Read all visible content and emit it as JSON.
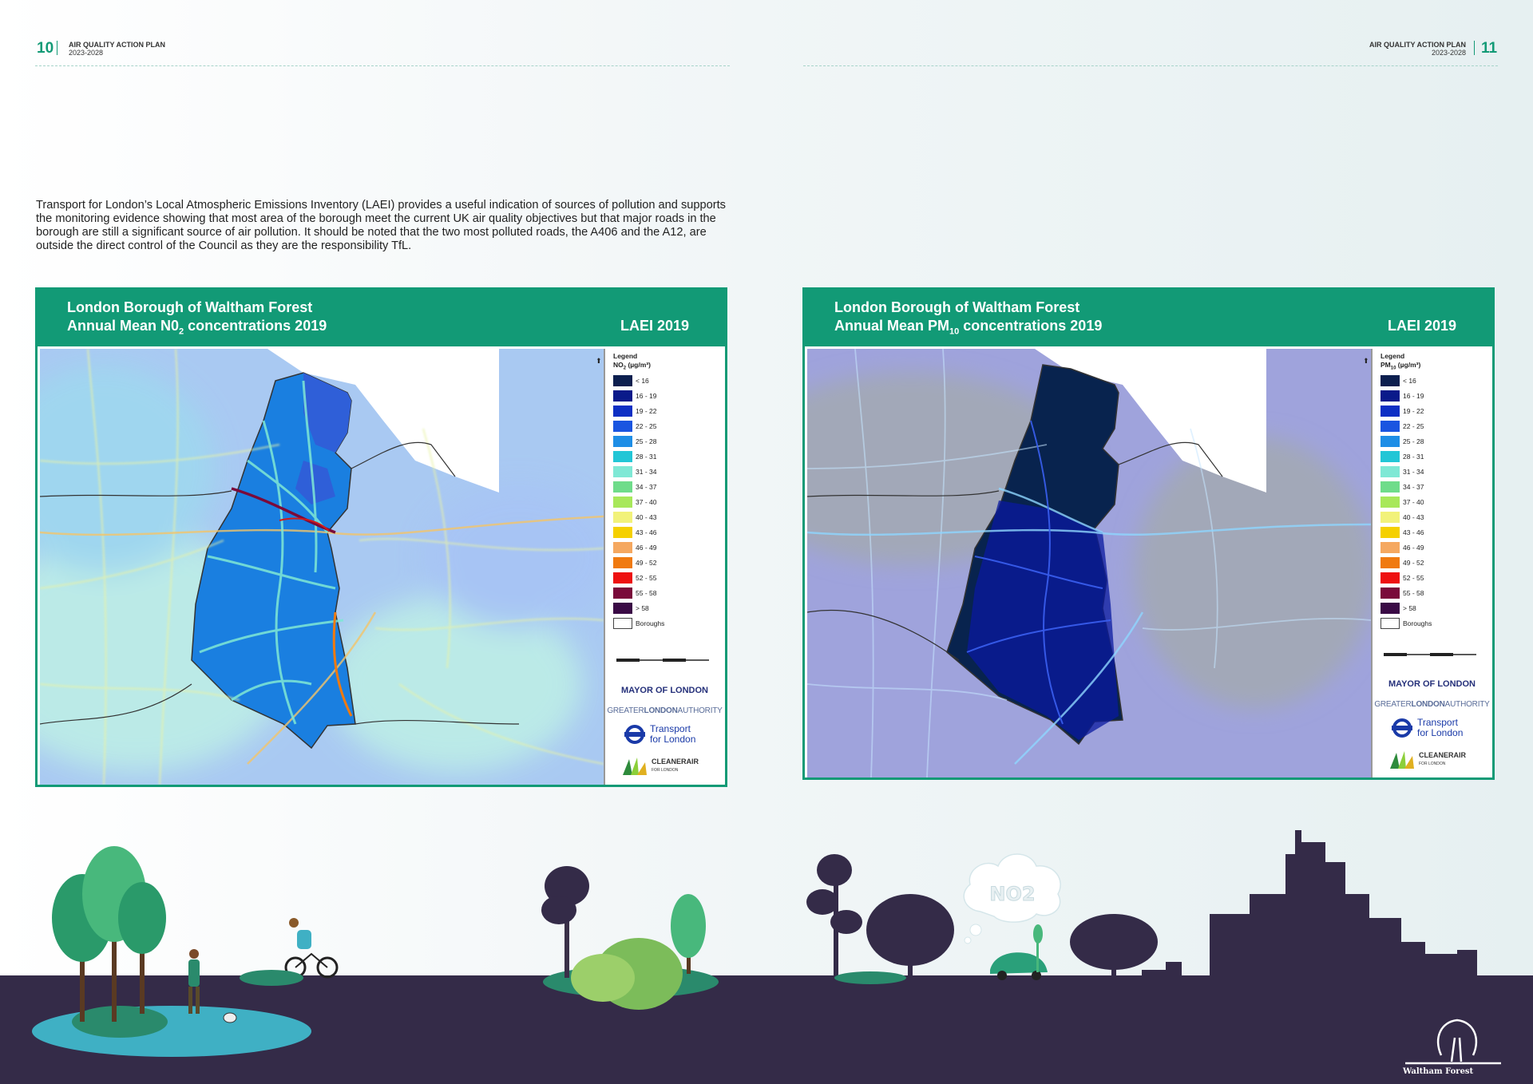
{
  "header": {
    "left_page": "10",
    "right_page": "11",
    "title": "AIR QUALITY ACTION PLAN",
    "years": "2023-2028"
  },
  "intro": "Transport for London’s Local Atmospheric Emissions Inventory (LAEI) provides a useful indication of sources of pollution and supports the monitoring evidence showing that most area of the borough meet the current UK air quality objectives but that major roads in the borough are still a significant source of air pollution. It should be noted that the two most polluted roads, the A406 and the A12, are outside the direct control of the Council as they are the responsibility TfL.",
  "maps": [
    {
      "title": "London Borough of Waltham Forest",
      "subtitle_pre": "Annual Mean N0",
      "subtitle_sub": "2",
      "subtitle_post": " concentrations 2019",
      "badge": "LAEI 2019",
      "legend_heading": "Legend",
      "legend_unit_pre": "NO",
      "legend_unit_sub": "2",
      "legend_unit_post": " (µg/m³)"
    },
    {
      "title": "London Borough of Waltham Forest",
      "subtitle_pre": "Annual Mean PM",
      "subtitle_sub": "10",
      "subtitle_post": " concentrations 2019",
      "badge": "LAEI 2019",
      "legend_heading": "Legend",
      "legend_unit_pre": "PM",
      "legend_unit_sub": "10",
      "legend_unit_post": " (µg/m³)"
    }
  ],
  "legend_bins": [
    {
      "label": "< 16",
      "color": "#0c1f4f"
    },
    {
      "label": "16 - 19",
      "color": "#0a1a8a"
    },
    {
      "label": "19 - 22",
      "color": "#0d2fc4"
    },
    {
      "label": "22 - 25",
      "color": "#1a55e0"
    },
    {
      "label": "25 - 28",
      "color": "#1e8ee6"
    },
    {
      "label": "28 - 31",
      "color": "#22c6d6"
    },
    {
      "label": "31 - 34",
      "color": "#7fe8d5"
    },
    {
      "label": "34 - 37",
      "color": "#6fdc8a"
    },
    {
      "label": "37 - 40",
      "color": "#a8e85a"
    },
    {
      "label": "40 - 43",
      "color": "#f2f27a"
    },
    {
      "label": "43 - 46",
      "color": "#f5d000"
    },
    {
      "label": "46 - 49",
      "color": "#f5a860"
    },
    {
      "label": "49 - 52",
      "color": "#f07a10"
    },
    {
      "label": "52 - 55",
      "color": "#ee1010"
    },
    {
      "label": "55 - 58",
      "color": "#7a0a3a"
    },
    {
      "label": "> 58",
      "color": "#3a0a45"
    },
    {
      "label": "Boroughs",
      "color": "#ffffff"
    }
  ],
  "logos": {
    "mayor": "MAYOR OF LONDON",
    "gla_a": "GREATER",
    "gla_b": "LONDON",
    "gla_c": "AUTHORITY",
    "tfl_1": "Transport",
    "tfl_2": "for London",
    "clean_a": "CLEANERAIR",
    "clean_b": "FOR LONDON"
  },
  "illustration": {
    "cloud": "NO2",
    "footer_logo": "Waltham Forest"
  }
}
